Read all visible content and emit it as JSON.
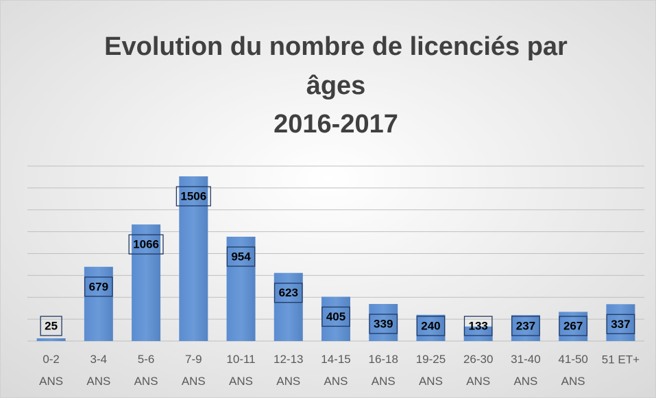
{
  "chart_data": {
    "type": "bar",
    "title": "Evolution du nombre de licenciés par âges",
    "subtitle": "2016-2017",
    "categories": [
      "0-2 ANS",
      "3-4 ANS",
      "5-6 ANS",
      "7-9 ANS",
      "10-11 ANS",
      "12-13 ANS",
      "14-15 ANS",
      "16-18 ANS",
      "19-25 ANS",
      "26-30 ANS",
      "31-40 ANS",
      "41-50 ANS",
      "51 ET+"
    ],
    "values": [
      25,
      679,
      1066,
      1506,
      954,
      623,
      405,
      339,
      240,
      133,
      237,
      267,
      337
    ],
    "color": "#5f8fcf",
    "ylim": [
      0,
      1600
    ],
    "yticks": [
      0,
      200,
      400,
      600,
      800,
      1000,
      1200,
      1400,
      1600
    ],
    "grid": true
  }
}
